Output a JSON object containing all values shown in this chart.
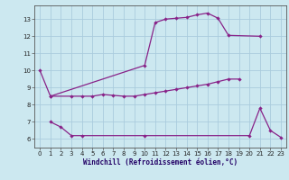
{
  "xlabel": "Windchill (Refroidissement éolien,°C)",
  "bg_color": "#cce8f0",
  "grid_color": "#aaccdd",
  "line_color": "#882288",
  "xlim": [
    -0.5,
    23.5
  ],
  "ylim": [
    5.5,
    13.8
  ],
  "xticks": [
    0,
    1,
    2,
    3,
    4,
    5,
    6,
    7,
    8,
    9,
    10,
    11,
    12,
    13,
    14,
    15,
    16,
    17,
    18,
    19,
    20,
    21,
    22,
    23
  ],
  "yticks": [
    6,
    7,
    8,
    9,
    10,
    11,
    12,
    13
  ],
  "line1_x": [
    0,
    1,
    10,
    11,
    12,
    13,
    14,
    15,
    16,
    17,
    18,
    21
  ],
  "line1_y": [
    10.0,
    8.5,
    10.3,
    12.8,
    13.0,
    13.05,
    13.1,
    13.25,
    13.35,
    13.05,
    12.05,
    12.0
  ],
  "line2_x": [
    1,
    3,
    4,
    5,
    6,
    7,
    8,
    9,
    10,
    11,
    12,
    13,
    14,
    15,
    16,
    17,
    18,
    19
  ],
  "line2_y": [
    8.5,
    8.5,
    8.5,
    8.5,
    8.6,
    8.55,
    8.5,
    8.5,
    8.6,
    8.7,
    8.8,
    8.9,
    9.0,
    9.1,
    9.2,
    9.35,
    9.5,
    9.5
  ],
  "line3_x": [
    1,
    2,
    3,
    4,
    10,
    20,
    21,
    22,
    23
  ],
  "line3_y": [
    7.0,
    6.7,
    6.2,
    6.2,
    6.2,
    6.2,
    7.8,
    6.5,
    6.1
  ]
}
